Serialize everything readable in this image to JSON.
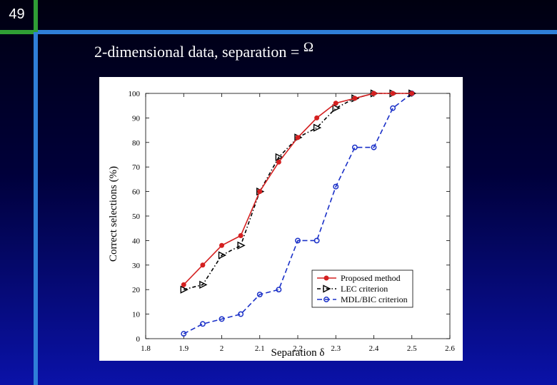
{
  "slide": {
    "number": "49",
    "title": "2-dimensional data, separation = ",
    "title_symbol": "Ω"
  },
  "chart_data": {
    "type": "line",
    "title": "",
    "xlabel": "Separation δ",
    "ylabel": "Correct selections (%)",
    "xlim": [
      1.8,
      2.6
    ],
    "ylim": [
      0,
      100
    ],
    "xticks": [
      "1.8",
      "1.9",
      "2",
      "2.1",
      "2.2",
      "2.3",
      "2.4",
      "2.5",
      "2.6"
    ],
    "yticks": [
      "0",
      "10",
      "20",
      "30",
      "40",
      "50",
      "60",
      "70",
      "80",
      "90",
      "100"
    ],
    "legend_position": "bottom-right",
    "grid": false,
    "x": [
      1.9,
      1.95,
      2.0,
      2.05,
      2.1,
      2.15,
      2.2,
      2.25,
      2.3,
      2.35,
      2.4,
      2.45,
      2.5
    ],
    "series": [
      {
        "name": "Proposed method",
        "color": "#d42020",
        "marker": "dot",
        "line_style": "solid",
        "values": [
          22,
          30,
          38,
          42,
          60,
          72,
          82,
          90,
          96,
          98,
          100,
          100,
          100
        ]
      },
      {
        "name": "LEC criterion",
        "color": "#000000",
        "marker": "triangle-right",
        "line_style": "dashdot",
        "values": [
          20,
          22,
          34,
          38,
          60,
          74,
          82,
          86,
          94,
          98,
          100,
          100,
          100
        ]
      },
      {
        "name": "MDL/BIC criterion",
        "color": "#1a30c8",
        "marker": "circle",
        "line_style": "dashed",
        "values": [
          2,
          6,
          8,
          10,
          18,
          20,
          40,
          40,
          62,
          78,
          78,
          94,
          100
        ]
      }
    ]
  }
}
